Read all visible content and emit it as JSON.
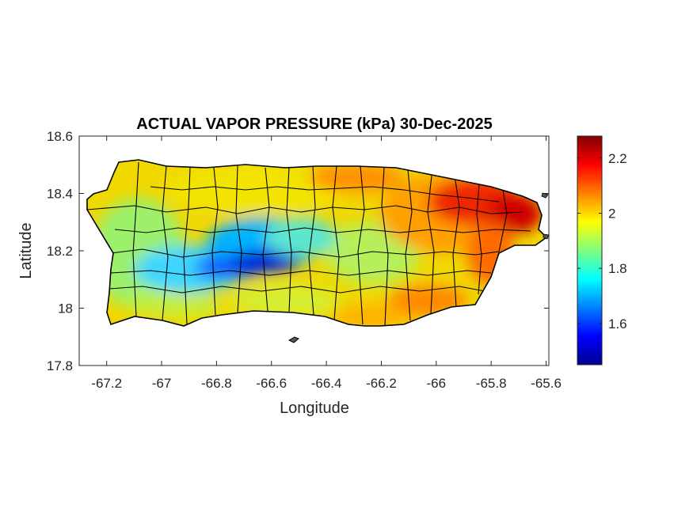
{
  "title": "ACTUAL VAPOR PRESSURE (kPa) 30-Dec-2025",
  "xlabel": "Longitude",
  "ylabel": "Latitude",
  "x_ticks": [
    "-67.2",
    "-67",
    "-66.8",
    "-66.6",
    "-66.4",
    "-66.2",
    "-66",
    "-65.8",
    "-65.6"
  ],
  "y_ticks": [
    "18.6",
    "18.4",
    "18.2",
    "18",
    "17.8"
  ],
  "colorbar_ticks": [
    "2.2",
    "2",
    "1.8",
    "1.6"
  ],
  "chart_data": {
    "type": "heatmap",
    "title": "ACTUAL VAPOR PRESSURE (kPa) 30-Dec-2025",
    "xlabel": "Longitude",
    "ylabel": "Latitude",
    "xlim": [
      -67.3,
      -65.59
    ],
    "ylim": [
      17.8,
      18.6
    ],
    "x_tick_values": [
      -67.2,
      -67,
      -66.8,
      -66.6,
      -66.4,
      -66.2,
      -66,
      -65.8,
      -65.6
    ],
    "y_tick_values": [
      18.6,
      18.4,
      18.2,
      18,
      17.8
    ],
    "colorbar": {
      "range": [
        1.45,
        2.28
      ],
      "ticks": [
        2.2,
        2,
        1.8,
        1.6
      ],
      "colormap": "jet"
    },
    "grid": false,
    "regions": [
      {
        "area": "northeast coast",
        "value": 2.2
      },
      {
        "area": "east coast",
        "value": 2.15
      },
      {
        "area": "south-central coast",
        "value": 2.1
      },
      {
        "area": "north coast",
        "value": 2.0
      },
      {
        "area": "central interior",
        "value": 1.9
      },
      {
        "area": "west",
        "value": 1.85
      },
      {
        "area": "central cordillera",
        "value": 1.55
      }
    ]
  }
}
